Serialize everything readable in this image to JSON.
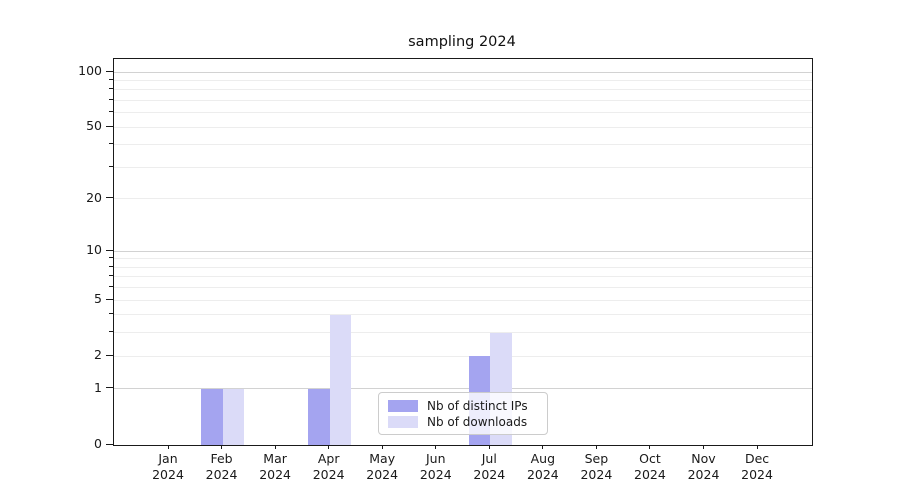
{
  "chart_data": {
    "type": "bar",
    "title": "sampling 2024",
    "scale": "log1p",
    "categories": [
      "Jan",
      "Feb",
      "Mar",
      "Apr",
      "May",
      "Jun",
      "Jul",
      "Aug",
      "Sep",
      "Oct",
      "Nov",
      "Dec"
    ],
    "category_year": "2024",
    "series": [
      {
        "name": "Nb of distinct IPs",
        "color": "#a4a4f0",
        "values": [
          0,
          1,
          0,
          1,
          0,
          0,
          2,
          0,
          0,
          0,
          0,
          0
        ]
      },
      {
        "name": "Nb of downloads",
        "color": "#dbdbf8",
        "values": [
          0,
          1,
          0,
          4,
          0,
          0,
          3,
          0,
          0,
          0,
          0,
          0
        ]
      }
    ],
    "y_ticks_labeled": [
      0,
      1,
      2,
      5,
      10,
      20,
      50,
      100
    ],
    "y_major_gridlines": [
      1,
      10,
      100
    ],
    "y_minor_gridlines": [
      2,
      3,
      4,
      5,
      6,
      7,
      8,
      9,
      20,
      30,
      40,
      50,
      60,
      70,
      80,
      90
    ],
    "ylim": [
      0,
      118
    ],
    "xlabel": "",
    "ylabel": "",
    "grid": true,
    "legend_position": "lower-center"
  },
  "colors": {
    "major_grid": "#d2d2d2",
    "minor_grid": "#ededed",
    "axis": "#1a1a1a",
    "background": "#ffffff"
  }
}
